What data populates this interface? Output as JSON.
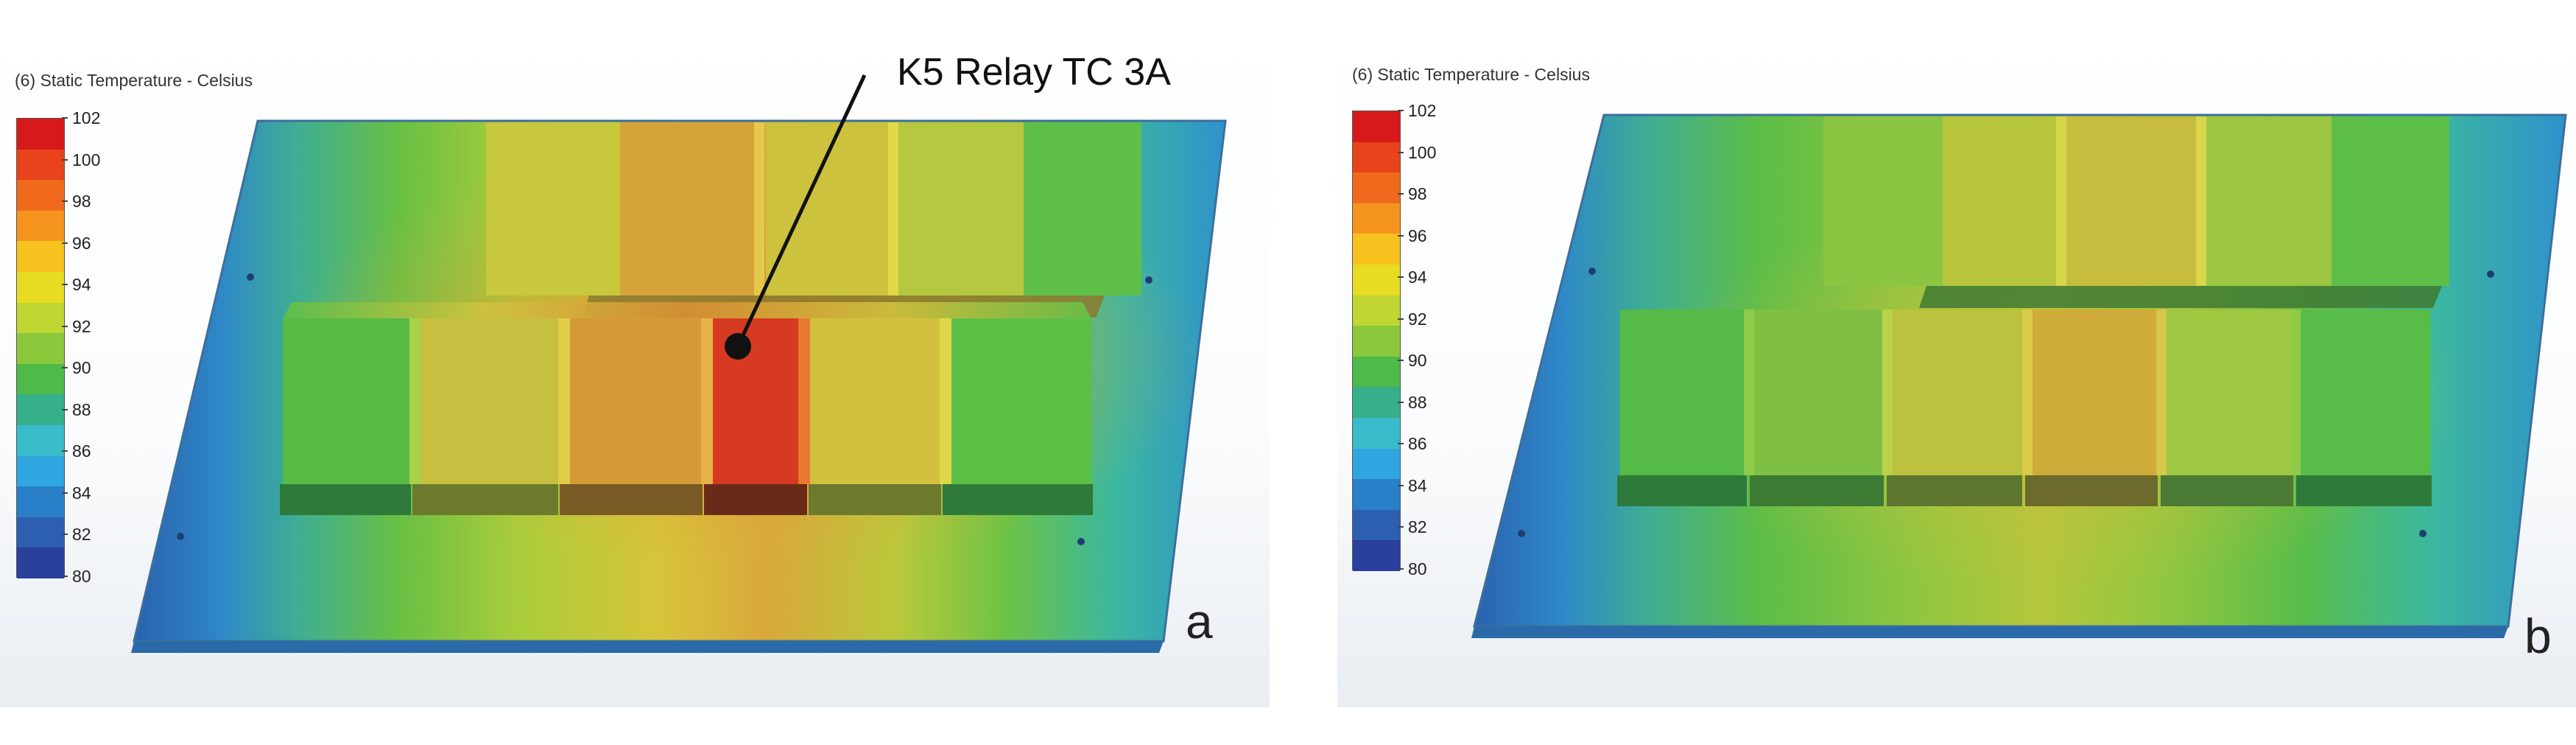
{
  "colorbar": {
    "title": "(6) Static Temperature - Celsius",
    "ticks": [
      "102",
      "100",
      "98",
      "96",
      "94",
      "92",
      "90",
      "88",
      "86",
      "84",
      "82",
      "80"
    ],
    "colors": [
      "#d7191c",
      "#e8431a",
      "#f06a1e",
      "#f5951f",
      "#f7c21e",
      "#e8dc22",
      "#bfd633",
      "#8bc83c",
      "#4dba4a",
      "#36b08a",
      "#38bcc9",
      "#2fa6e0",
      "#2a7fc9",
      "#2d5fb0",
      "#2b3f9c"
    ]
  },
  "panels": [
    {
      "id": "a",
      "letter": "a",
      "callout": "K5 Relay  TC 3A"
    },
    {
      "id": "b",
      "letter": "b"
    }
  ]
}
